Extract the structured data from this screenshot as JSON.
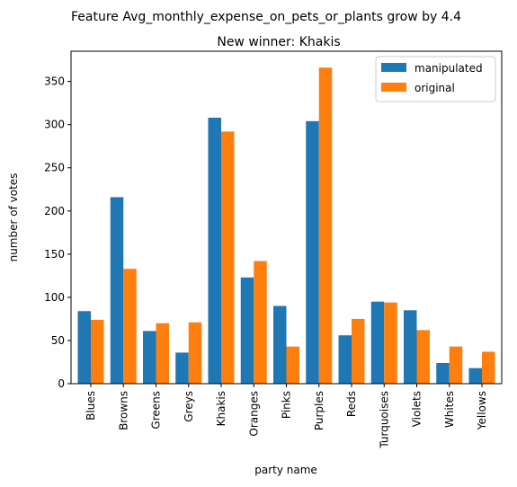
{
  "chart_data": {
    "type": "bar",
    "suptitle": "Feature Avg_monthly_expense_on_pets_or_plants grow by 4.4",
    "title": "New winner: Khakis",
    "xlabel": "party name",
    "ylabel": "number of votes",
    "ylim": [
      0,
      385
    ],
    "yticks": [
      0,
      50,
      100,
      150,
      200,
      250,
      300,
      350
    ],
    "grid": false,
    "legend_position": "top-right",
    "categories": [
      "Blues",
      "Browns",
      "Greens",
      "Greys",
      "Khakis",
      "Oranges",
      "Pinks",
      "Purples",
      "Reds",
      "Turquoises",
      "Violets",
      "Whites",
      "Yellows"
    ],
    "series": [
      {
        "name": "manipulated",
        "color": "#1f77b4",
        "values": [
          84,
          216,
          61,
          36,
          308,
          123,
          90,
          304,
          56,
          95,
          85,
          24,
          18
        ]
      },
      {
        "name": "original",
        "color": "#ff7f0e",
        "values": [
          74,
          133,
          70,
          71,
          292,
          142,
          43,
          366,
          75,
          94,
          62,
          43,
          37
        ]
      }
    ]
  }
}
